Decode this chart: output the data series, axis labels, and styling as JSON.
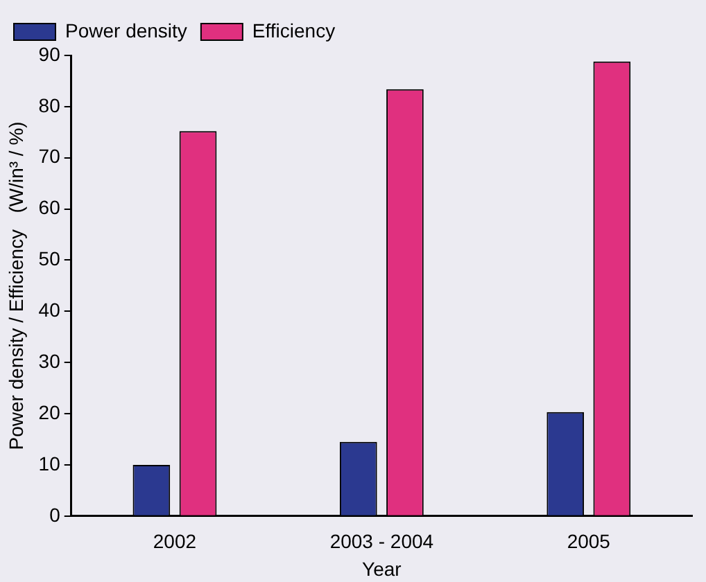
{
  "chart_data": {
    "type": "bar",
    "xlabel": "Year",
    "ylabel": "Power density / Efficiency   (W/in³ / %)",
    "categories": [
      "2002",
      "2003 - 2004",
      "2005"
    ],
    "series": [
      {
        "name": "Power density",
        "color": "#2b3990",
        "values": [
          10,
          14.5,
          20.3
        ]
      },
      {
        "name": "Efficiency",
        "color": "#e0307f",
        "values": [
          75.2,
          83.4,
          88.8
        ]
      }
    ],
    "ylim": [
      0,
      90
    ],
    "yticks": [
      0,
      10,
      20,
      30,
      40,
      50,
      60,
      70,
      80,
      90
    ],
    "grid": false,
    "legend": "top left"
  }
}
